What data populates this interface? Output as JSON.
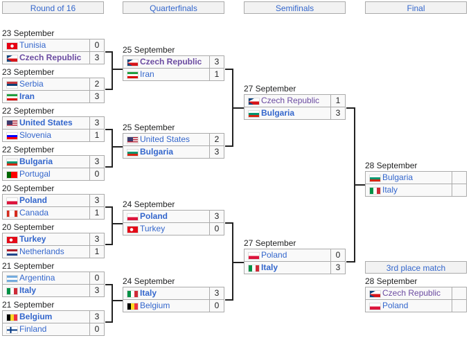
{
  "headers": [
    "Round of 16",
    "Quarterfinals",
    "Semifinals",
    "Final"
  ],
  "third_place_header": "3rd place match",
  "colors": {
    "link": "#3366cc",
    "visited_link": "#6b4ba1",
    "cell_bg": "#f9f9f9",
    "border": "#aaaaaa",
    "header_bg": "#f2f2f2"
  },
  "round_of_16": [
    {
      "date": "23 September",
      "teams": [
        {
          "name": "Tunisia",
          "flag": "tunisia",
          "score": "0"
        },
        {
          "name": "Czech Republic",
          "flag": "czech",
          "score": "3",
          "win": true,
          "visited": true
        }
      ]
    },
    {
      "date": "23 September",
      "teams": [
        {
          "name": "Serbia",
          "flag": "serbia",
          "score": "2"
        },
        {
          "name": "Iran",
          "flag": "iran",
          "score": "3",
          "win": true
        }
      ]
    },
    {
      "date": "22 September",
      "teams": [
        {
          "name": "United States",
          "flag": "usa",
          "score": "3",
          "win": true
        },
        {
          "name": "Slovenia",
          "flag": "slovenia",
          "score": "1"
        }
      ]
    },
    {
      "date": "22 September",
      "teams": [
        {
          "name": "Bulgaria",
          "flag": "bulgaria",
          "score": "3",
          "win": true
        },
        {
          "name": "Portugal",
          "flag": "portugal",
          "score": "0"
        }
      ]
    },
    {
      "date": "20 September",
      "teams": [
        {
          "name": "Poland",
          "flag": "poland",
          "score": "3",
          "win": true
        },
        {
          "name": "Canada",
          "flag": "canada",
          "score": "1"
        }
      ]
    },
    {
      "date": "20 September",
      "teams": [
        {
          "name": "Turkey",
          "flag": "turkey",
          "score": "3",
          "win": true
        },
        {
          "name": "Netherlands",
          "flag": "netherlands",
          "score": "1"
        }
      ]
    },
    {
      "date": "21 September",
      "teams": [
        {
          "name": "Argentina",
          "flag": "argentina",
          "score": "0"
        },
        {
          "name": "Italy",
          "flag": "italy",
          "score": "3",
          "win": true
        }
      ]
    },
    {
      "date": "21 September",
      "teams": [
        {
          "name": "Belgium",
          "flag": "belgium",
          "score": "3",
          "win": true
        },
        {
          "name": "Finland",
          "flag": "finland",
          "score": "0"
        }
      ]
    }
  ],
  "quarterfinals": [
    {
      "date": "25 September",
      "teams": [
        {
          "name": "Czech Republic",
          "flag": "czech",
          "score": "3",
          "win": true,
          "visited": true
        },
        {
          "name": "Iran",
          "flag": "iran",
          "score": "1"
        }
      ]
    },
    {
      "date": "25 September",
      "teams": [
        {
          "name": "United States",
          "flag": "usa",
          "score": "2"
        },
        {
          "name": "Bulgaria",
          "flag": "bulgaria",
          "score": "3",
          "win": true
        }
      ]
    },
    {
      "date": "24 September",
      "teams": [
        {
          "name": "Poland",
          "flag": "poland",
          "score": "3",
          "win": true
        },
        {
          "name": "Turkey",
          "flag": "turkey",
          "score": "0"
        }
      ]
    },
    {
      "date": "24 September",
      "teams": [
        {
          "name": "Italy",
          "flag": "italy",
          "score": "3",
          "win": true
        },
        {
          "name": "Belgium",
          "flag": "belgium",
          "score": "0"
        }
      ]
    }
  ],
  "semifinals": [
    {
      "date": "27 September",
      "teams": [
        {
          "name": "Czech Republic",
          "flag": "czech",
          "score": "1",
          "visited": true
        },
        {
          "name": "Bulgaria",
          "flag": "bulgaria",
          "score": "3",
          "win": true
        }
      ]
    },
    {
      "date": "27 September",
      "teams": [
        {
          "name": "Poland",
          "flag": "poland",
          "score": "0"
        },
        {
          "name": "Italy",
          "flag": "italy",
          "score": "3",
          "win": true
        }
      ]
    }
  ],
  "final": [
    {
      "date": "28 September",
      "teams": [
        {
          "name": "Bulgaria",
          "flag": "bulgaria",
          "score": ""
        },
        {
          "name": "Italy",
          "flag": "italy",
          "score": ""
        }
      ]
    }
  ],
  "third_place": [
    {
      "date": "28 September",
      "teams": [
        {
          "name": "Czech Republic",
          "flag": "czech",
          "score": "",
          "visited": true
        },
        {
          "name": "Poland",
          "flag": "poland",
          "score": ""
        }
      ]
    }
  ]
}
